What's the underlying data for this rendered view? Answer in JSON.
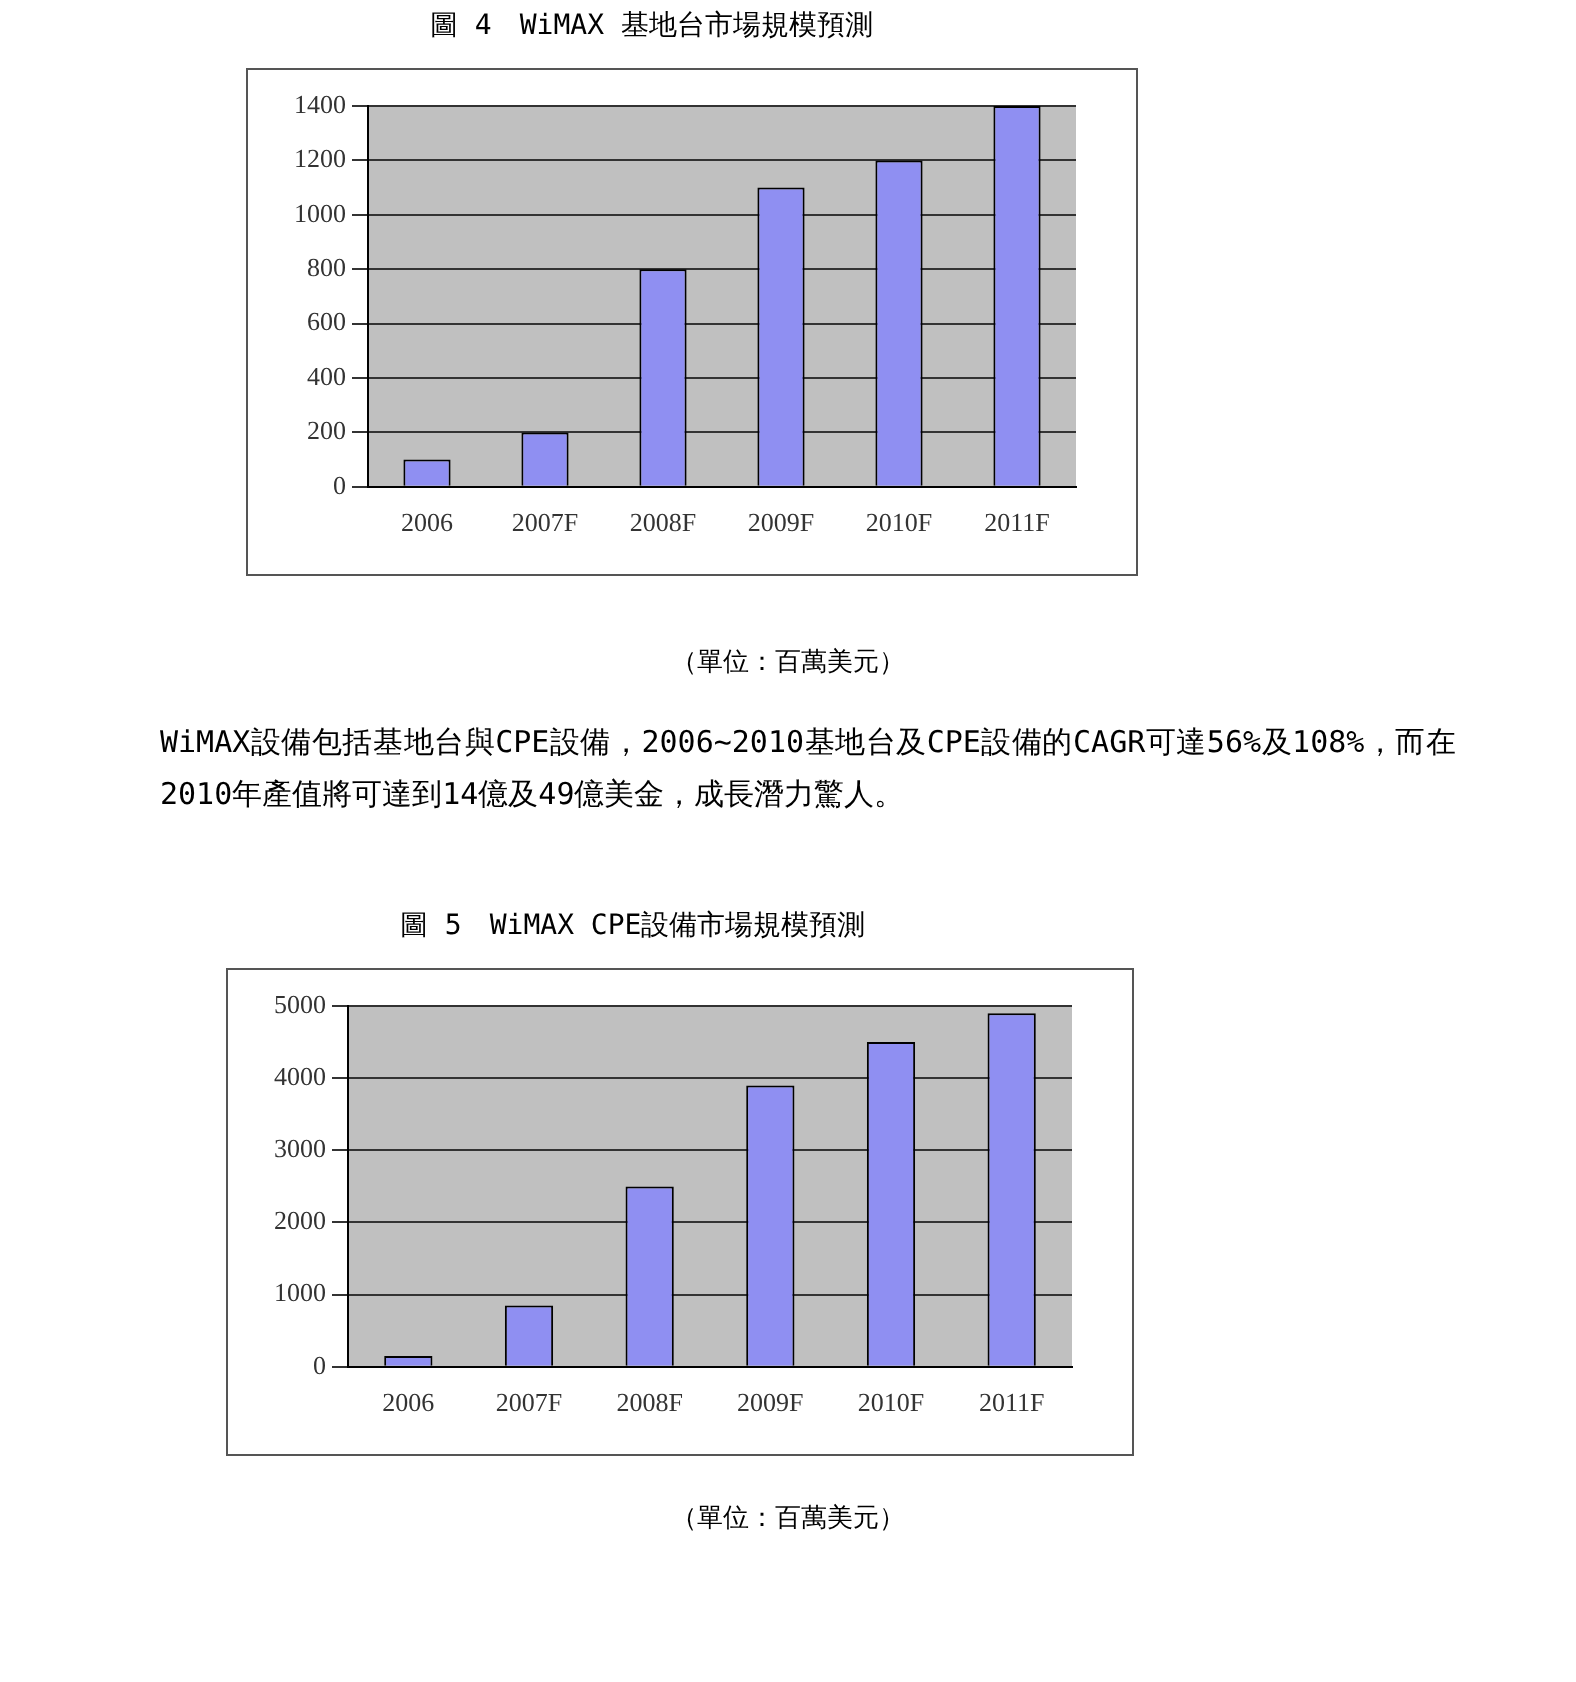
{
  "chart_data": [
    {
      "type": "bar",
      "title": "圖 4　WiMAX 基地台市場規模預測",
      "categories": [
        "2006",
        "2007F",
        "2008F",
        "2009F",
        "2010F",
        "2011F"
      ],
      "values": [
        100,
        200,
        800,
        1100,
        1200,
        1400
      ],
      "color": "#8f8ff2",
      "ylim": [
        0,
        1400
      ],
      "yticks": [
        0,
        200,
        400,
        600,
        800,
        1000,
        1200,
        1400
      ],
      "grid": "y",
      "annotations": [
        "（單位：百萬美元）",
        "WiMAX設備包括基地台與CPE設備，2006~2010基地台及CPE設備的CAGR可達56%及108%，而在2010年產值將可達到14億及49億美金，成長潛力驚人。"
      ]
    },
    {
      "type": "bar",
      "title": "圖 5　WiMAX CPE設備市場規模預測",
      "categories": [
        "2006",
        "2007F",
        "2008F",
        "2009F",
        "2010F",
        "2011F"
      ],
      "values": [
        150,
        850,
        2500,
        3900,
        4500,
        4900
      ],
      "color": "#8f8ff2",
      "ylim": [
        0,
        5000
      ],
      "yticks": [
        0,
        1000,
        2000,
        3000,
        4000,
        5000
      ],
      "grid": "y",
      "annotations": [
        "（單位：百萬美元）"
      ]
    }
  ]
}
